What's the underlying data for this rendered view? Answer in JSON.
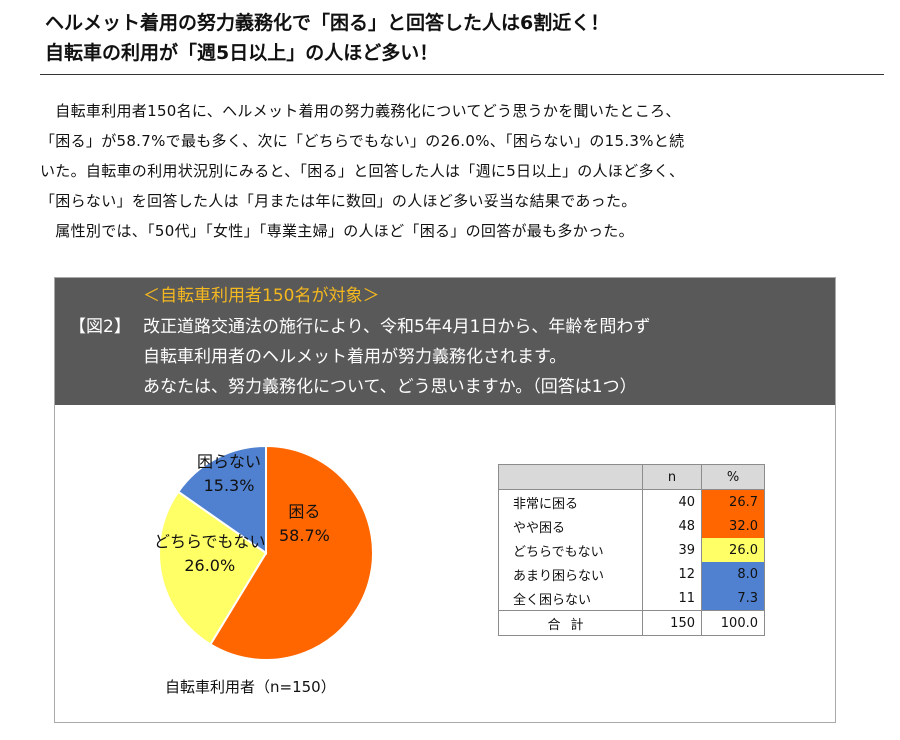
{
  "headline": {
    "line1": "ヘルメット着用の努力義務化で「困る」と回答した人は6割近く！",
    "line2": "自転車の利用が「週5日以上」の人ほど多い！"
  },
  "body": {
    "lines": [
      "　自転車利用者150名に、ヘルメット着用の努力義務化についてどう思うかを聞いたところ、",
      "「困る」が58.7%で最も多く、次に「どちらでもない」の26.0%、「困らない」の15.3%と続",
      "いた。自転車の利用状況別にみると、「困る」と回答した人は「週に5日以上」の人ほど多く、",
      "「困らない」を回答した人は「月または年に数回」の人ほど多い妥当な結果であった。",
      "　属性別では、「50代」「女性」「専業主婦」の人ほど「困る」の回答が最も多かった。"
    ]
  },
  "figure": {
    "target": "＜自転車利用者150名が対象＞",
    "number": "【図2】",
    "question_lines": [
      "改正道路交通法の施行により、令和5年4月1日から、年齢を問わず",
      "自転車利用者のヘルメット着用が努力義務化されます。",
      "あなたは、努力義務化について、どう思いますか。（回答は1つ）"
    ],
    "caption": "自転車利用者（n=150）",
    "colors": {
      "header_bg": "#595959",
      "target_text": "#f5b81f"
    }
  },
  "chart_data": {
    "type": "pie",
    "title": "",
    "slices": [
      {
        "name": "困る",
        "value": 58.7,
        "color": "#ff6600"
      },
      {
        "name": "どちらでもない",
        "value": 26.0,
        "color": "#ffff66"
      },
      {
        "name": "困らない",
        "value": 15.3,
        "color": "#4f81d0"
      }
    ],
    "value_labels": [
      "58.7%",
      "26.0%",
      "15.3%"
    ],
    "start_angle_deg": 0,
    "direction": "clockwise",
    "border_color": "#ffffff"
  },
  "table": {
    "headers": [
      "",
      "n",
      "%"
    ],
    "rows": [
      {
        "label": "非常に困る",
        "n": "40",
        "pct": "26.7",
        "color": "#ff6600"
      },
      {
        "label": "やや困る",
        "n": "48",
        "pct": "32.0",
        "color": "#ff6600"
      },
      {
        "label": "どちらでもない",
        "n": "39",
        "pct": "26.0",
        "color": "#ffff66"
      },
      {
        "label": "あまり困らない",
        "n": "12",
        "pct": "8.0",
        "color": "#4f81d0"
      },
      {
        "label": "全く困らない",
        "n": "11",
        "pct": "7.3",
        "color": "#4f81d0"
      }
    ],
    "total": {
      "label": "合計",
      "n": "150",
      "pct": "100.0"
    }
  }
}
